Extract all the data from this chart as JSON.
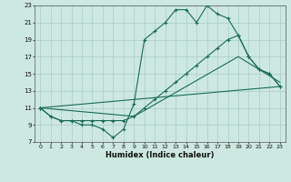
{
  "xlabel": "Humidex (Indice chaleur)",
  "background_color": "#cce8e0",
  "grid_color": "#aacccc",
  "line_color": "#1a6b5a",
  "xlim": [
    -0.5,
    23.5
  ],
  "ylim": [
    7,
    23
  ],
  "xticks": [
    0,
    1,
    2,
    3,
    4,
    5,
    6,
    7,
    8,
    9,
    10,
    11,
    12,
    13,
    14,
    15,
    16,
    17,
    18,
    19,
    20,
    21,
    22,
    23
  ],
  "yticks": [
    7,
    9,
    11,
    13,
    15,
    17,
    19,
    21,
    23
  ],
  "series1_x": [
    0,
    1,
    2,
    3,
    4,
    5,
    6,
    7,
    8,
    9,
    10,
    11,
    12,
    13,
    14,
    15,
    16,
    17,
    18,
    19,
    20,
    21,
    22,
    23
  ],
  "series1_y": [
    11,
    10,
    9.5,
    9.5,
    9,
    9,
    8.5,
    7.5,
    8.5,
    11.5,
    19,
    20,
    21,
    22.5,
    22.5,
    21,
    23,
    22,
    21.5,
    19.5,
    17,
    15.5,
    15,
    13.5
  ],
  "series2_x": [
    0,
    1,
    2,
    3,
    4,
    5,
    6,
    7,
    8,
    9,
    10,
    11,
    12,
    13,
    14,
    15,
    16,
    17,
    18,
    19,
    20,
    21,
    22,
    23
  ],
  "series2_y": [
    11,
    10,
    9.5,
    9.5,
    9.5,
    9.5,
    9.5,
    9.5,
    9.5,
    10,
    11,
    12,
    13,
    14,
    15,
    16,
    17,
    18,
    19,
    19.5,
    17,
    15.5,
    15,
    13.5
  ],
  "series3_x": [
    0,
    23
  ],
  "series3_y": [
    11,
    13.5
  ],
  "series4_x": [
    0,
    9,
    19,
    23
  ],
  "series4_y": [
    11,
    10,
    17,
    14
  ]
}
